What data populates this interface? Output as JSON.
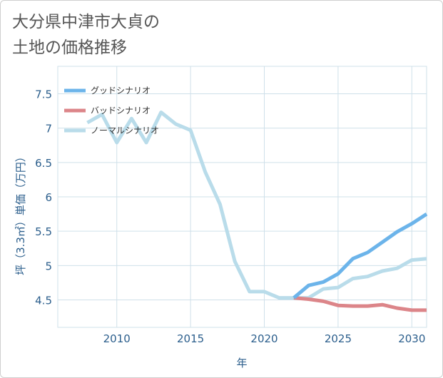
{
  "title": "大分県中津市大貞の\n土地の価格推移",
  "chart_data": {
    "type": "line",
    "xlabel": "年",
    "ylabel": "坪（3.3㎡）単価（万円）",
    "xlim": [
      2006,
      2031
    ],
    "ylim": [
      4.1,
      7.9
    ],
    "x_ticks": [
      2010,
      2015,
      2020,
      2025,
      2030
    ],
    "y_ticks": [
      4.5,
      5,
      5.5,
      6,
      6.5,
      7,
      7.5
    ],
    "x_tick_labels": [
      "2010",
      "2015",
      "2020",
      "2025",
      "2030"
    ],
    "y_tick_labels": [
      "4.5",
      "5",
      "5.5",
      "6",
      "6.5",
      "7",
      "7.5"
    ],
    "grid": true,
    "legend_position": "top-left",
    "series": [
      {
        "name": "グッドシナリオ",
        "color": "#6cb4ea",
        "x": [
          2022,
          2023,
          2024,
          2025,
          2026,
          2027,
          2028,
          2029,
          2030,
          2031
        ],
        "y": [
          4.53,
          4.71,
          4.76,
          4.88,
          5.1,
          5.19,
          5.34,
          5.49,
          5.61,
          5.75
        ]
      },
      {
        "name": "バッドシナリオ",
        "color": "#dc8589",
        "x": [
          2022,
          2023,
          2024,
          2025,
          2026,
          2027,
          2028,
          2029,
          2030,
          2031
        ],
        "y": [
          4.53,
          4.51,
          4.48,
          4.42,
          4.41,
          4.41,
          4.43,
          4.38,
          4.35,
          4.35
        ]
      },
      {
        "name": "ノーマルシナリオ",
        "color": "#b9dcea",
        "x": [
          2008,
          2009,
          2010,
          2011,
          2012,
          2013,
          2014,
          2015,
          2016,
          2017,
          2018,
          2019,
          2020,
          2021,
          2022,
          2023,
          2024,
          2025,
          2026,
          2027,
          2028,
          2029,
          2030,
          2031
        ],
        "y": [
          7.08,
          7.2,
          6.79,
          7.14,
          6.79,
          7.23,
          7.06,
          6.97,
          6.36,
          5.89,
          5.06,
          4.62,
          4.62,
          4.53,
          4.53,
          4.53,
          4.66,
          4.68,
          4.81,
          4.84,
          4.92,
          4.96,
          5.08,
          5.1
        ]
      }
    ]
  }
}
